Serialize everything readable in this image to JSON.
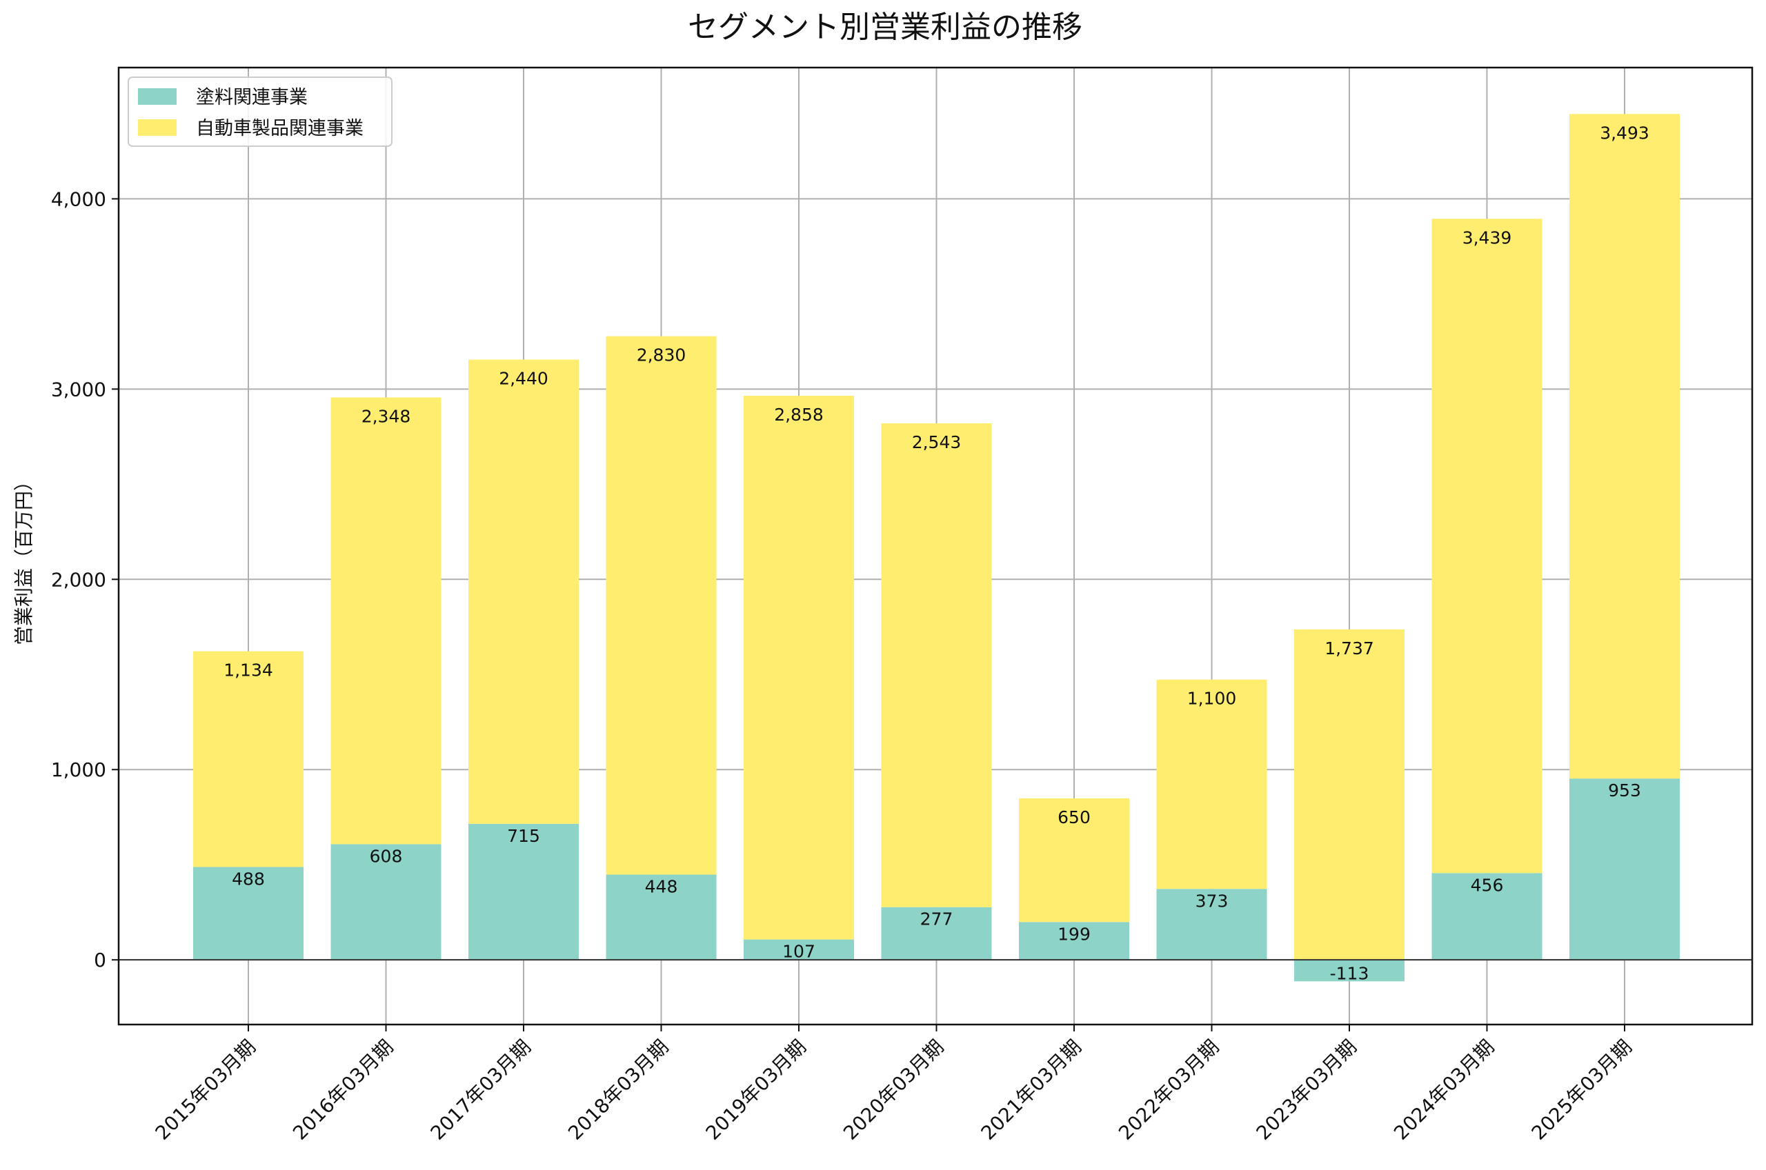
{
  "chart_data": {
    "type": "bar",
    "stacked": true,
    "title": "セグメント別営業利益の推移",
    "xlabel": "",
    "ylabel": "営業利益（百万円）",
    "ylim": [
      -340,
      4690
    ],
    "yticks": [
      0,
      1000,
      2000,
      3000,
      4000
    ],
    "ytick_labels": [
      "0",
      "1,000",
      "2,000",
      "3,000",
      "4,000"
    ],
    "grid": true,
    "legend_position": "top-left",
    "categories": [
      "2015年03月期",
      "2016年03月期",
      "2017年03月期",
      "2018年03月期",
      "2019年03月期",
      "2020年03月期",
      "2021年03月期",
      "2022年03月期",
      "2023年03月期",
      "2024年03月期",
      "2025年03月期"
    ],
    "series": [
      {
        "name": "塗料関連事業",
        "color": "#8dd3c7",
        "values": [
          488,
          608,
          715,
          448,
          107,
          277,
          199,
          373,
          -113,
          456,
          953
        ],
        "labels": [
          "488",
          "608",
          "715",
          "448",
          "107",
          "277",
          "199",
          "373",
          "-113",
          "456",
          "953"
        ]
      },
      {
        "name": "自動車製品関連事業",
        "color": "#ffed6f",
        "values": [
          1134,
          2348,
          2440,
          2830,
          2858,
          2543,
          650,
          1100,
          1737,
          3439,
          3493
        ],
        "labels": [
          "1,134",
          "2,348",
          "2,440",
          "2,830",
          "2,858",
          "2,543",
          "650",
          "1,100",
          "1,737",
          "3,439",
          "3,493"
        ]
      }
    ]
  }
}
